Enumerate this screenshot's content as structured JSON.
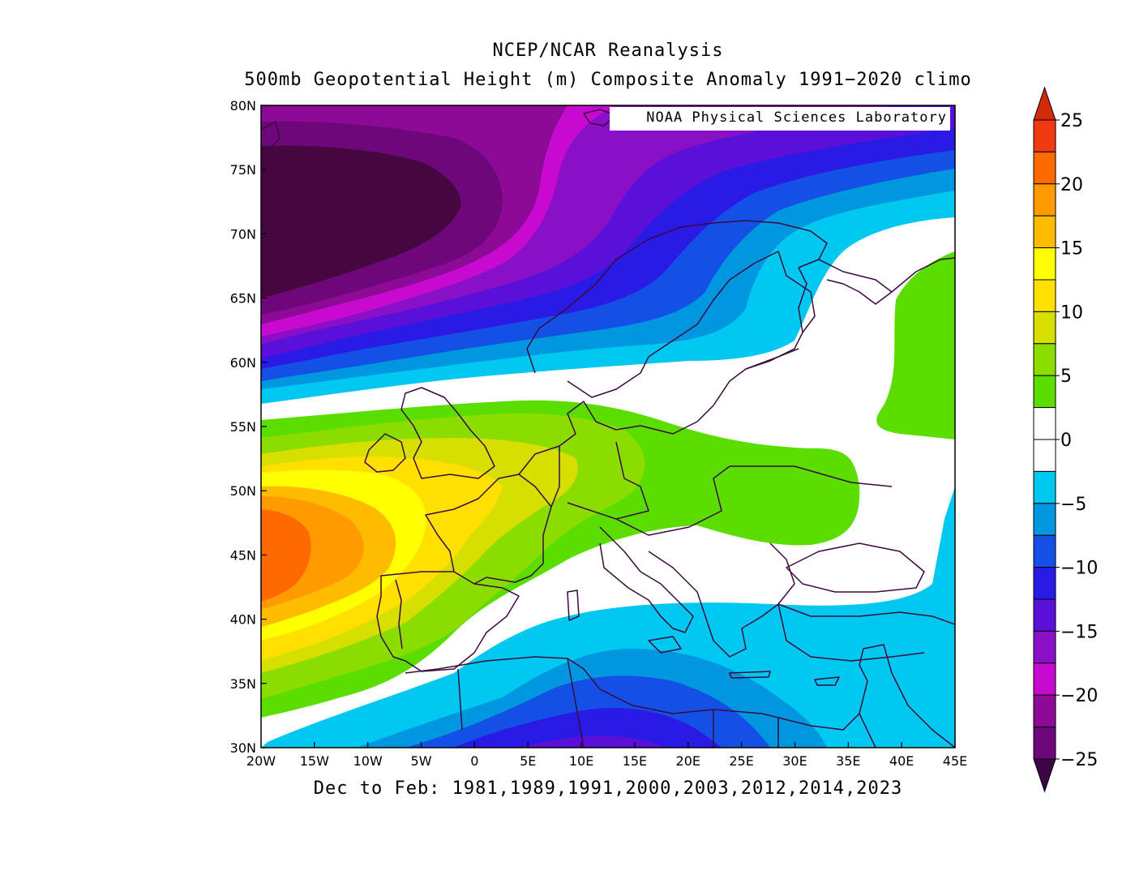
{
  "title": "NCEP/NCAR Reanalysis",
  "subtitle": "500mb Geopotential Height (m) Composite Anomaly 1991−2020 climo",
  "footer": "Dec to Feb: 1981,1989,1991,2000,2003,2012,2014,2023",
  "watermark": "NOAA Physical Sciences Laboratory",
  "map": {
    "region": "Europe",
    "lon_range": [
      -20,
      45
    ],
    "lat_range": [
      30,
      80
    ],
    "lon_ticks": [
      "20W",
      "15W",
      "10W",
      "5W",
      "0",
      "5E",
      "10E",
      "15E",
      "20E",
      "25E",
      "30E",
      "35E",
      "40E",
      "45E"
    ],
    "lat_ticks": [
      "30N",
      "35N",
      "40N",
      "45N",
      "50N",
      "55N",
      "60N",
      "65N",
      "70N",
      "75N",
      "80N"
    ]
  },
  "colorbar": {
    "labels": [
      "25",
      "20",
      "15",
      "10",
      "5",
      "0",
      "−5",
      "−10",
      "−15",
      "−20",
      "−25"
    ],
    "levels": [
      25,
      22.5,
      20,
      17.5,
      15,
      12.5,
      10,
      7.5,
      5,
      2.5,
      0,
      -2.5,
      -5,
      -7.5,
      -10,
      -12.5,
      -15,
      -17.5,
      -20,
      -22.5,
      -25
    ],
    "colors": [
      "#f23a12",
      "#ff6a00",
      "#ff9a00",
      "#ffbb00",
      "#ffff00",
      "#ffe000",
      "#d6df00",
      "#8bdd00",
      "#5cdd00",
      "#ffffff",
      "#ffffff",
      "#00c8f0",
      "#0096e0",
      "#1450e6",
      "#2a1ae6",
      "#5a10d8",
      "#8a10c8",
      "#c80ad0",
      "#8c0a96",
      "#6e087a",
      "#460640"
    ],
    "max_arrow_color": "#d42a0c",
    "min_arrow_color": "#3c0548"
  }
}
